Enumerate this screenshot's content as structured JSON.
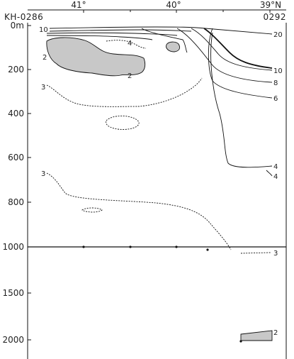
{
  "chart_data": {
    "type": "contour-section",
    "x_axis": {
      "ticks": [
        {
          "value": 41,
          "label": "41°"
        },
        {
          "value": 40,
          "label": "40°"
        },
        {
          "value": 39,
          "label": "39°N"
        }
      ],
      "range": [
        41.6,
        38.9
      ]
    },
    "y_axis": {
      "ticks": [
        {
          "value": 0,
          "label": "0m"
        },
        {
          "value": 200,
          "label": "200"
        },
        {
          "value": 400,
          "label": "400"
        },
        {
          "value": 600,
          "label": "600"
        },
        {
          "value": 800,
          "label": "800"
        },
        {
          "value": 1000,
          "label": "1000"
        },
        {
          "value": 1500,
          "label": "1500"
        },
        {
          "value": 2000,
          "label": "2000"
        }
      ],
      "upper_panel_range": [
        0,
        1000
      ],
      "lower_panel_range": [
        1000,
        2100
      ]
    },
    "stations": {
      "start_label": "KH-0286",
      "end_label": "0292",
      "positions": [
        41.0,
        40.5,
        40.0,
        39.67,
        39.35
      ]
    },
    "contour_labels": [
      {
        "label": "20"
      },
      {
        "label": "10"
      },
      {
        "label": "10"
      },
      {
        "label": "8"
      },
      {
        "label": "6"
      },
      {
        "label": "4"
      },
      {
        "label": "4"
      },
      {
        "label": "4"
      },
      {
        "label": "2"
      },
      {
        "label": "2"
      },
      {
        "label": "3"
      },
      {
        "label": "3"
      },
      {
        "label": "3"
      },
      {
        "label": "2"
      }
    ]
  }
}
